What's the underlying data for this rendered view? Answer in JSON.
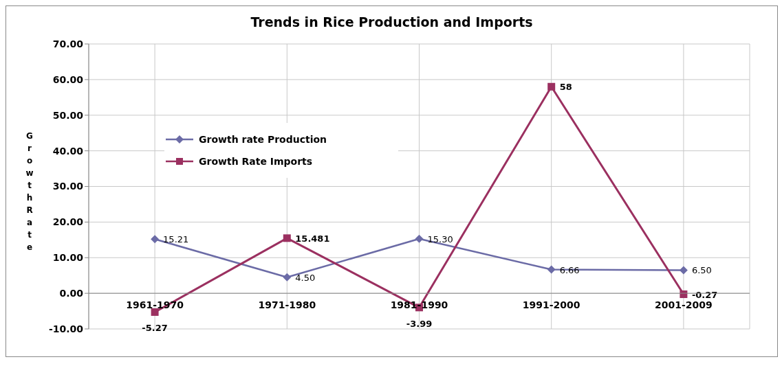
{
  "chart_data": {
    "type": "line",
    "title": "Trends in Rice Production and Imports",
    "ylabel": "Growth Rate",
    "categories": [
      "1961-1970",
      "1971-1980",
      "1981-1990",
      "1991-2000",
      "2001-2009"
    ],
    "series": [
      {
        "name": "Growth rate Production",
        "color": "#6b6ba6",
        "marker": "diamond",
        "values": [
          15.21,
          4.5,
          15.3,
          6.66,
          6.5
        ],
        "value_labels": [
          "15.21",
          "4.50",
          "15.30",
          "6.66",
          "6.50"
        ]
      },
      {
        "name": "Growth Rate Imports",
        "color": "#9b3060",
        "marker": "square",
        "values": [
          -5.27,
          15.481,
          -3.99,
          58,
          -0.27
        ],
        "value_labels": [
          "-5.27",
          "15.481",
          "-3.99",
          "58",
          "-0.27"
        ]
      }
    ],
    "ylim": [
      -10,
      70
    ],
    "yticks": [
      {
        "value": -10,
        "label": "-10.00"
      },
      {
        "value": 0,
        "label": "0.00"
      },
      {
        "value": 10,
        "label": "10.00"
      },
      {
        "value": 20,
        "label": "20.00"
      },
      {
        "value": 30,
        "label": "30.00"
      },
      {
        "value": 40,
        "label": "40.00"
      },
      {
        "value": 50,
        "label": "50.00"
      },
      {
        "value": 60,
        "label": "60.00"
      },
      {
        "value": 70,
        "label": "70.00"
      }
    ],
    "grid": true,
    "legend": "top left",
    "line_style": "solid"
  }
}
